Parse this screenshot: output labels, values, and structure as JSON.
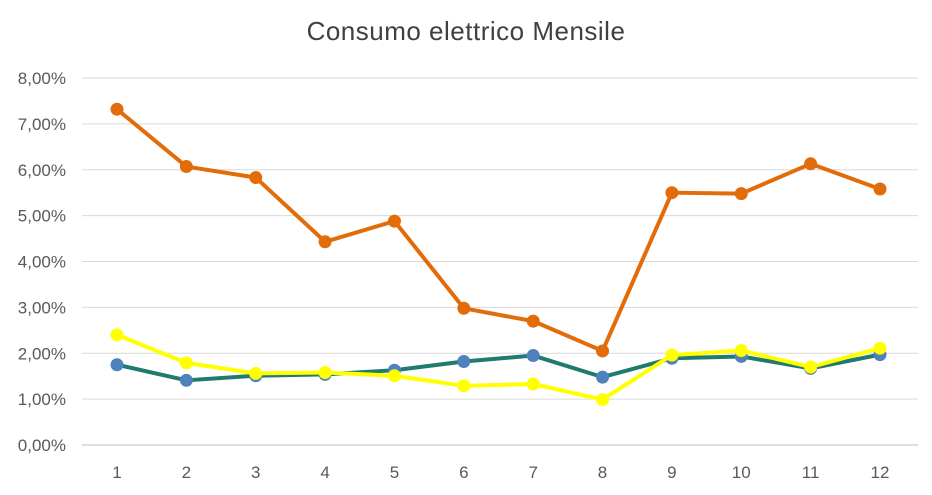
{
  "chart_data": {
    "type": "line",
    "title": "Consumo elettrico Mensile",
    "x": [
      "1",
      "2",
      "3",
      "4",
      "5",
      "6",
      "7",
      "8",
      "9",
      "10",
      "11",
      "12"
    ],
    "y_ticks": [
      "0,00%",
      "1,00%",
      "2,00%",
      "3,00%",
      "4,00%",
      "5,00%",
      "6,00%",
      "7,00%",
      "8,00%"
    ],
    "ylim": [
      0,
      8
    ],
    "grid": true,
    "legend": "none",
    "series": [
      {
        "color": "#E36C0A",
        "values": [
          7.32,
          6.07,
          5.83,
          4.43,
          4.88,
          2.98,
          2.7,
          2.05,
          5.5,
          5.48,
          6.13,
          5.58
        ]
      },
      {
        "color": "#1F7A6F",
        "marker_color": "#4F81BD",
        "values": [
          1.75,
          1.41,
          1.51,
          1.54,
          1.63,
          1.82,
          1.95,
          1.48,
          1.89,
          1.93,
          1.67,
          1.97
        ]
      },
      {
        "color": "#FFFF00",
        "values": [
          2.4,
          1.79,
          1.56,
          1.58,
          1.51,
          1.29,
          1.33,
          0.99,
          1.96,
          2.06,
          1.7,
          2.11
        ]
      }
    ]
  }
}
